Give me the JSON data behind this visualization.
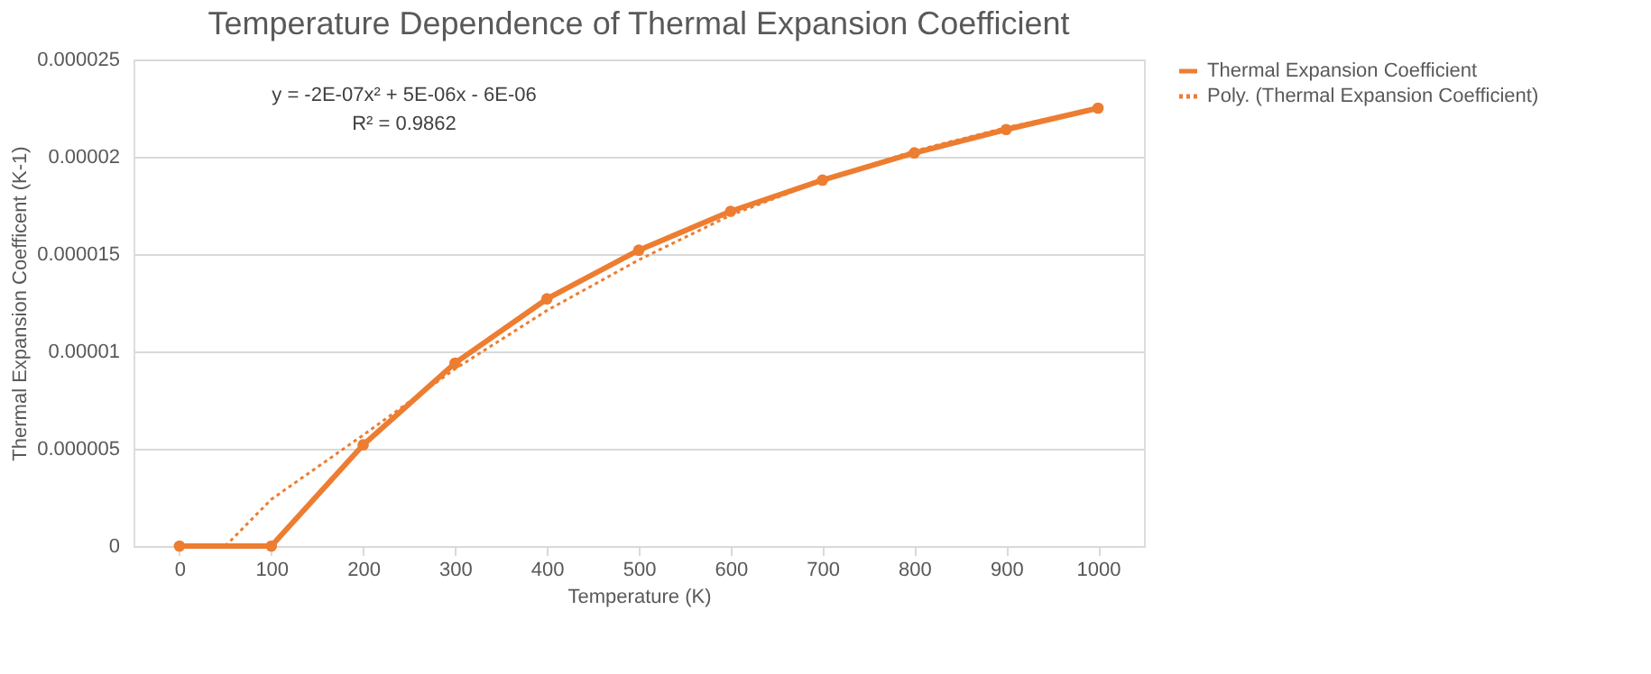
{
  "chart_data": {
    "type": "line",
    "title": "Temperature Dependence of Thermal Expansion Coefficient",
    "xlabel": "Temperature (K)",
    "ylabel": "Thermal Expansion Coefficent (K-1)",
    "x": [
      0,
      100,
      200,
      300,
      400,
      500,
      600,
      700,
      800,
      900,
      1000
    ],
    "series": [
      {
        "name": "Thermal Expansion Coefficient",
        "color": "#ed7d31",
        "marker": "circle",
        "line_style": "solid",
        "values": [
          0,
          0,
          5.2e-06,
          9.4e-06,
          1.27e-05,
          1.52e-05,
          1.72e-05,
          1.88e-05,
          2.02e-05,
          2.14e-05,
          2.25e-05
        ]
      },
      {
        "name": "Poly. (Thermal Expansion Coefficient)",
        "color": "#ed7d31",
        "marker": "none",
        "line_style": "dotted",
        "x": [
          50,
          100,
          200,
          300,
          400,
          500,
          600,
          700,
          800,
          900,
          1000
        ],
        "values": [
          0,
          2.4e-06,
          5.7e-06,
          9.1e-06,
          1.21e-05,
          1.47e-05,
          1.7e-05,
          1.88e-05,
          2.03e-05,
          2.15e-05,
          2.25e-05
        ]
      }
    ],
    "annotations": [
      "y = -2E-07x² + 5E-06x - 6E-06",
      "R² = 0.9862"
    ],
    "xlim": [
      -50,
      1050
    ],
    "xticks": [
      0,
      100,
      200,
      300,
      400,
      500,
      600,
      700,
      800,
      900,
      1000
    ],
    "ylim": [
      0,
      2.5e-05
    ],
    "yticks": [
      0,
      {
        "value": 5e-06,
        "label": "0.000005"
      },
      {
        "value": 1e-05,
        "label": "0.00001"
      },
      {
        "value": 1.5e-05,
        "label": "0.000015"
      },
      {
        "value": 2e-05,
        "label": "0.00002"
      },
      {
        "value": 2.5e-05,
        "label": "0.000025"
      }
    ],
    "grid": "y",
    "legend": "right"
  }
}
